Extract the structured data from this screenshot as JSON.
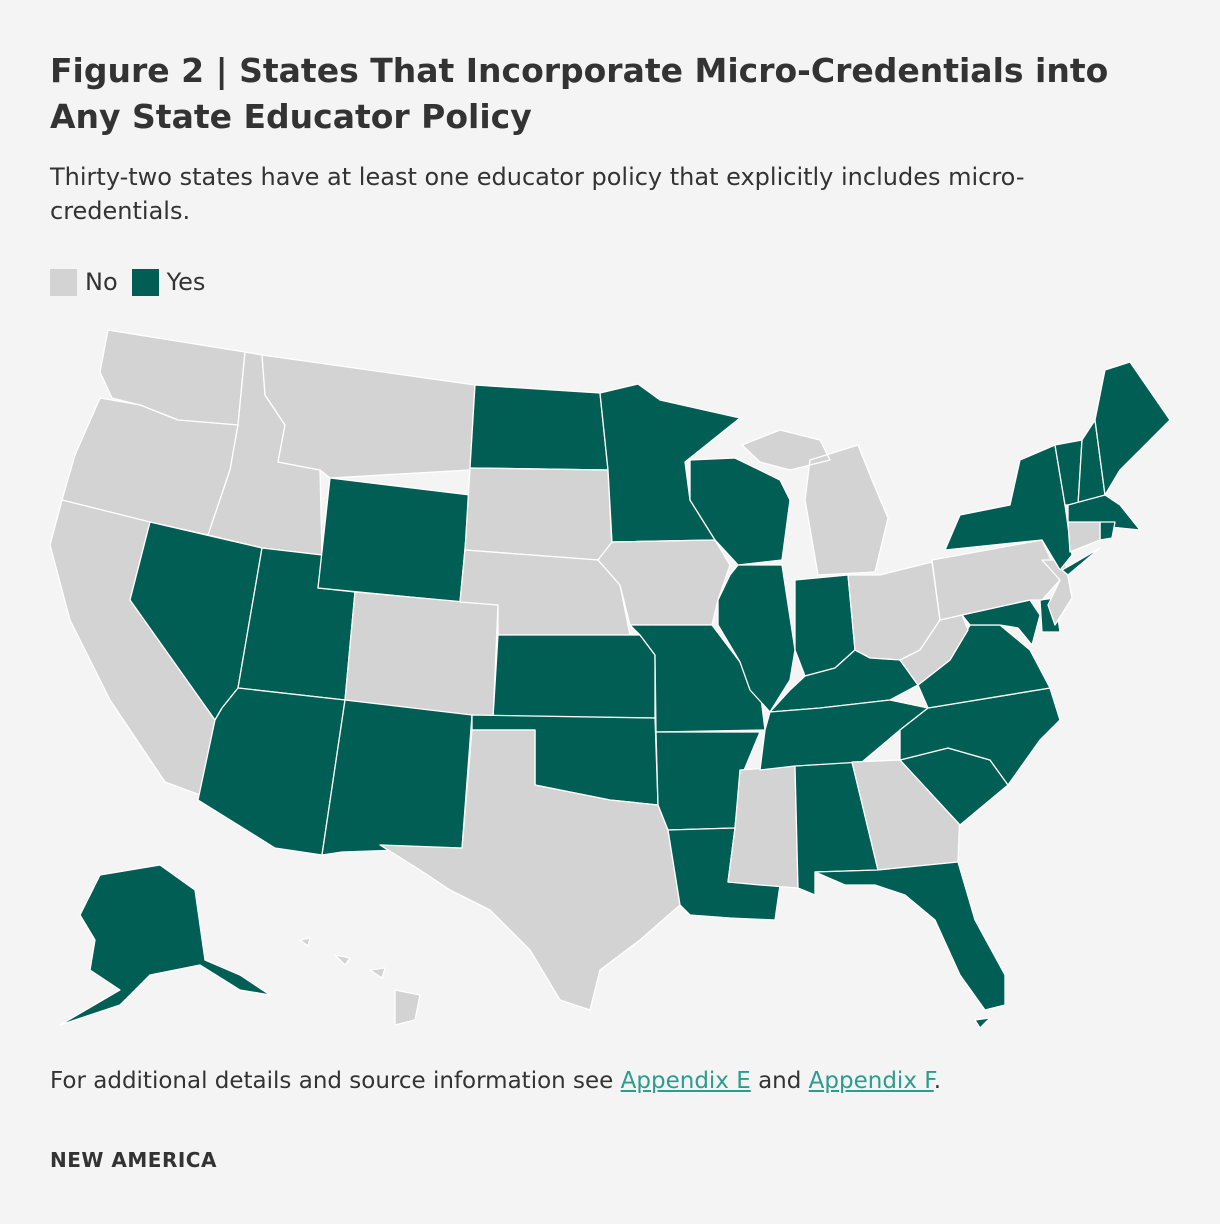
{
  "title": "Figure 2 | States That Incorporate Micro-Credentials into Any State Educator Policy",
  "subtitle": "Thirty-two states have at least one educator policy that explicitly includes micro-credentials.",
  "legend": {
    "no": {
      "label": "No",
      "color": "#d3d3d3"
    },
    "yes": {
      "label": "Yes",
      "color": "#005e54"
    }
  },
  "colors": {
    "no": "#d3d3d3",
    "yes": "#005e54",
    "border": "#ffffff",
    "link": "#2a9d8f"
  },
  "states_yes": [
    "AK",
    "AL",
    "AR",
    "AZ",
    "DE",
    "FL",
    "IL",
    "IN",
    "KS",
    "KY",
    "LA",
    "MA",
    "MD",
    "ME",
    "MN",
    "MO",
    "ND",
    "NH",
    "NM",
    "NV",
    "NY",
    "NC",
    "OK",
    "RI",
    "SC",
    "TN",
    "UT",
    "VA",
    "VT",
    "WI",
    "WY",
    "DC"
  ],
  "states_no": [
    "CA",
    "CO",
    "CT",
    "GA",
    "HI",
    "IA",
    "ID",
    "MI",
    "MS",
    "MT",
    "NE",
    "NJ",
    "OH",
    "OR",
    "PA",
    "SD",
    "TX",
    "WA",
    "WV"
  ],
  "footnote": {
    "prefix": "For additional details and source information see ",
    "link1": "Appendix E",
    "middle": " and ",
    "link2": "Appendix F",
    "suffix": "."
  },
  "brand": "NEW AMERICA"
}
